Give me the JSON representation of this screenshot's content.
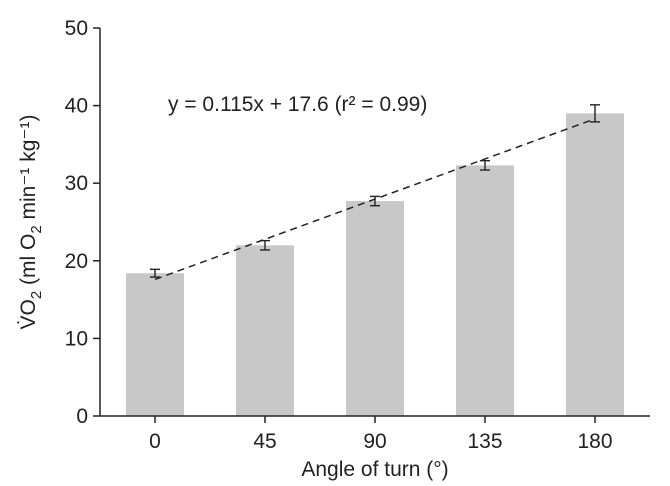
{
  "chart_data": {
    "type": "bar",
    "categories": [
      "0",
      "45",
      "90",
      "135",
      "180"
    ],
    "values": [
      18.4,
      22.0,
      27.7,
      32.3,
      39.0
    ],
    "errors": [
      0.5,
      0.6,
      0.6,
      0.6,
      1.1
    ],
    "ylim": [
      0,
      50
    ],
    "yticks": [
      0,
      10,
      20,
      30,
      40,
      50
    ],
    "xlabel": "Angle of turn (°)",
    "ylabel": "V̇O2 (ml O2 min⁻¹ kg⁻¹)",
    "ylabel_parts": {
      "main": "V̇O",
      "sub1": "2",
      "mid": " (ml O",
      "sub2": "2",
      "tail": " min⁻¹ kg⁻¹)"
    },
    "regression": {
      "slope": 0.115,
      "intercept": 17.6,
      "label": "y = 0.115x + 17.6 (r² = 0.99)",
      "style": "dashed"
    },
    "bar_color": "#c8c8c8",
    "line_color": "#222222",
    "grid": false,
    "legend": "none"
  }
}
